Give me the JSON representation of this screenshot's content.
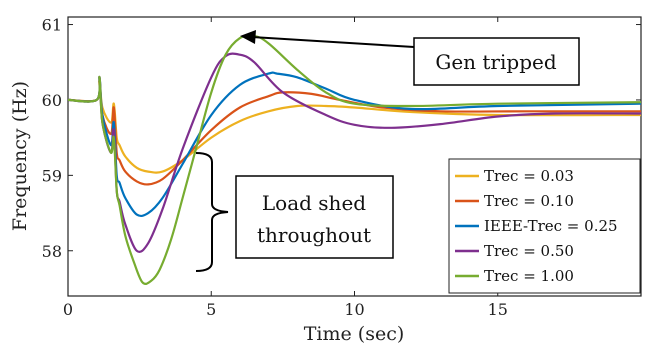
{
  "chart_data": {
    "type": "line",
    "title": "",
    "xlabel": "Time (sec)",
    "ylabel": "Frequency (Hz)",
    "xlim": [
      0,
      20
    ],
    "ylim": [
      57.4,
      61.1
    ],
    "xticks": [
      0,
      5,
      10,
      15
    ],
    "yticks": [
      58,
      59,
      60,
      61
    ],
    "grid": false,
    "legend_position": "bottom-right",
    "series": [
      {
        "name": "Trec = 0.03",
        "color": "#EDB120",
        "x": [
          0,
          1,
          1.1,
          1.2,
          1.5,
          1.6,
          1.7,
          1.8,
          2.0,
          2.4,
          2.8,
          3.3,
          4.0,
          5.0,
          6.0,
          7.0,
          8.0,
          9.0,
          10,
          12,
          15,
          20
        ],
        "y": [
          60,
          60,
          60.25,
          59.9,
          59.7,
          59.95,
          59.5,
          59.4,
          59.25,
          59.1,
          59.05,
          59.05,
          59.2,
          59.5,
          59.72,
          59.85,
          59.92,
          59.92,
          59.9,
          59.84,
          59.8,
          59.8
        ]
      },
      {
        "name": "Trec = 0.10",
        "color": "#D95319",
        "x": [
          0,
          1,
          1.1,
          1.2,
          1.5,
          1.6,
          1.7,
          1.8,
          2.0,
          2.4,
          2.8,
          3.3,
          4.0,
          5.0,
          6.0,
          7.0,
          7.5,
          8.5,
          9.5,
          11,
          13,
          16,
          20
        ],
        "y": [
          60,
          60,
          60.25,
          59.8,
          59.55,
          59.9,
          59.3,
          59.2,
          59.05,
          58.92,
          58.88,
          58.95,
          59.2,
          59.6,
          59.9,
          60.05,
          60.1,
          60.08,
          60.0,
          59.9,
          59.85,
          59.85,
          59.85
        ]
      },
      {
        "name": "IEEE-Trec = 0.25",
        "color": "#0072BD",
        "x": [
          0,
          1,
          1.1,
          1.2,
          1.5,
          1.6,
          1.7,
          1.8,
          2.0,
          2.4,
          2.8,
          3.3,
          4.0,
          5.0,
          6.0,
          7.0,
          7.3,
          8.0,
          9.0,
          10,
          12,
          15,
          20
        ],
        "y": [
          60,
          60,
          60.3,
          59.8,
          59.4,
          59.7,
          59.0,
          58.9,
          58.7,
          58.48,
          58.5,
          58.7,
          59.15,
          59.8,
          60.2,
          60.35,
          60.35,
          60.3,
          60.15,
          60.0,
          59.88,
          59.92,
          59.95
        ]
      },
      {
        "name": "Trec = 0.50",
        "color": "#7E2F8E",
        "x": [
          0,
          1,
          1.1,
          1.2,
          1.5,
          1.6,
          1.7,
          1.8,
          2.0,
          2.4,
          2.8,
          3.3,
          4.0,
          5.0,
          5.5,
          6.0,
          6.5,
          7.5,
          9.0,
          10,
          11.3,
          13,
          15,
          17,
          20
        ],
        "y": [
          60,
          60,
          60.3,
          59.7,
          59.3,
          59.6,
          58.8,
          58.65,
          58.35,
          58.0,
          58.1,
          58.55,
          59.35,
          60.3,
          60.58,
          60.6,
          60.5,
          60.1,
          59.8,
          59.67,
          59.63,
          59.68,
          59.78,
          59.82,
          59.82
        ]
      },
      {
        "name": "Trec = 1.00",
        "color": "#77AC30",
        "x": [
          0,
          1,
          1.1,
          1.2,
          1.5,
          1.6,
          1.7,
          1.8,
          2.0,
          2.3,
          2.6,
          2.9,
          3.2,
          3.6,
          4.0,
          4.5,
          5.0,
          5.5,
          6.0,
          6.5,
          7.0,
          8.0,
          9.0,
          10,
          12,
          15,
          20
        ],
        "y": [
          60,
          60,
          60.3,
          59.7,
          59.3,
          59.5,
          58.8,
          58.6,
          58.2,
          57.85,
          57.58,
          57.6,
          57.75,
          58.15,
          58.7,
          59.4,
          60.1,
          60.6,
          60.82,
          60.85,
          60.75,
          60.4,
          60.1,
          59.95,
          59.92,
          59.95,
          59.97
        ]
      }
    ],
    "annotations": [
      {
        "text": "Gen tripped"
      },
      {
        "text": "Load shed throughout",
        "lines": [
          "Load shed",
          "throughout"
        ]
      }
    ]
  }
}
